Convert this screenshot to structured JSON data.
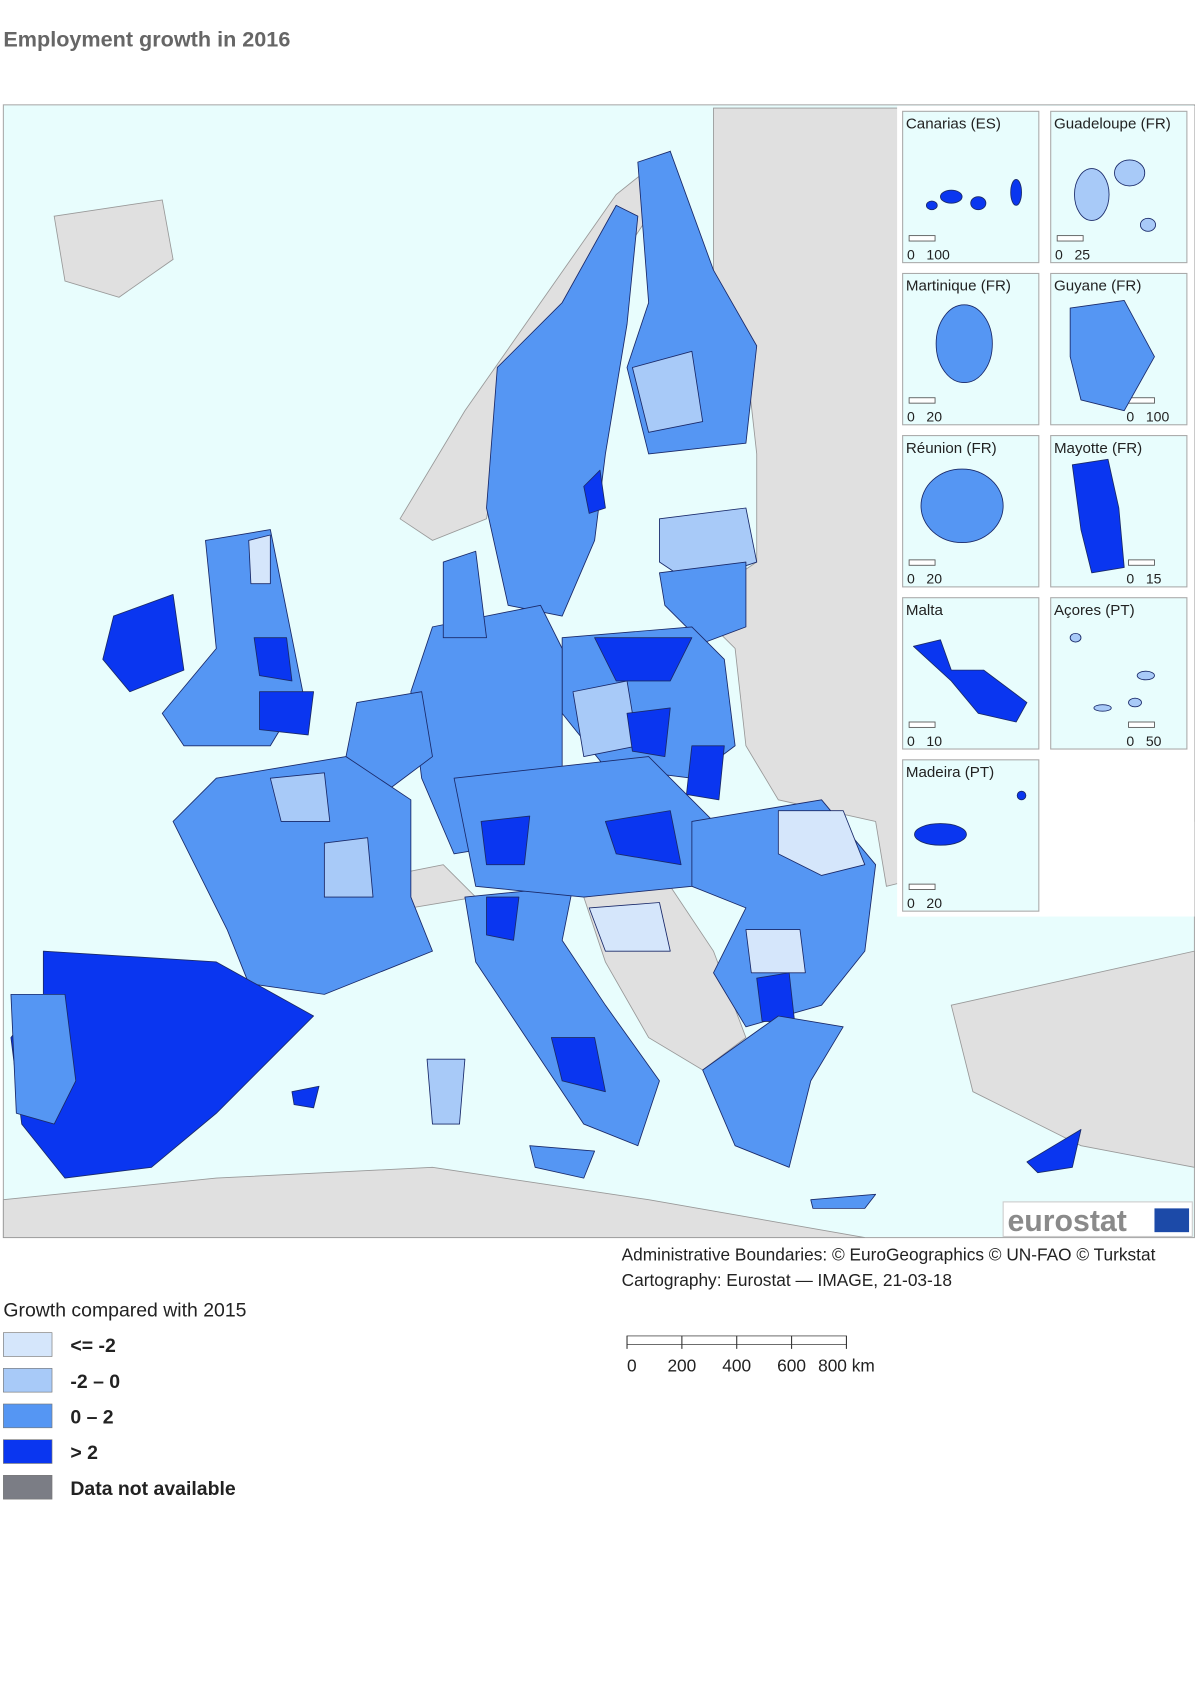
{
  "title": "Employment growth in 2016",
  "insets": [
    {
      "label": "Canarias (ES)",
      "scale": [
        "0",
        "100"
      ]
    },
    {
      "label": "Guadeloupe (FR)",
      "scale": [
        "0",
        "25"
      ]
    },
    {
      "label": "Martinique (FR)",
      "scale": [
        "0",
        "20"
      ]
    },
    {
      "label": "Guyane (FR)",
      "scale": [
        "0",
        "100"
      ]
    },
    {
      "label": "Réunion (FR)",
      "scale": [
        "0",
        "20"
      ]
    },
    {
      "label": "Mayotte (FR)",
      "scale": [
        "0",
        "15"
      ]
    },
    {
      "label": "Malta",
      "scale": [
        "0",
        "10"
      ]
    },
    {
      "label": "Açores (PT)",
      "scale": [
        "0",
        "50"
      ]
    },
    {
      "label": "Madeira (PT)",
      "scale": [
        "0",
        "20"
      ]
    }
  ],
  "logo": "eurostat",
  "credits": [
    "Administrative Boundaries: © EuroGeographics © UN-FAO © Turkstat",
    "Cartography: Eurostat — IMAGE, 21-03-18"
  ],
  "legend": {
    "title": "Growth compared with 2015",
    "items": [
      {
        "label": "<= -2",
        "color": "#d5e6fb"
      },
      {
        "label": "-2 – 0",
        "color": "#a8caf8"
      },
      {
        "label": "0 – 2",
        "color": "#5596f3"
      },
      {
        "label": "> 2",
        "color": "#0a36f0"
      },
      {
        "label": "Data not available",
        "color": "#7b7d85"
      }
    ]
  },
  "scale_bar": {
    "ticks": [
      "0",
      "200",
      "400",
      "600",
      "800 km"
    ]
  }
}
